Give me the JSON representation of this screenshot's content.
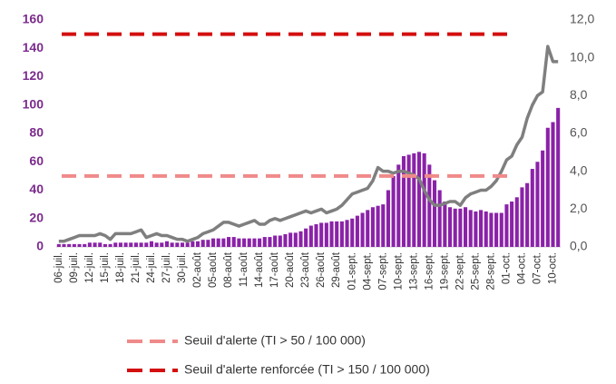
{
  "chart_data": {
    "type": "bar-line",
    "categories": [
      "06-juil.",
      null,
      null,
      "09-juil.",
      null,
      null,
      "12-juil.",
      null,
      null,
      "15-juil.",
      null,
      null,
      "18-juil.",
      null,
      null,
      "21-juil.",
      null,
      null,
      "24-juil.",
      null,
      null,
      "27-juil.",
      null,
      null,
      "30-juil.",
      null,
      null,
      "02-août",
      null,
      null,
      "05-août",
      null,
      null,
      "08-août",
      null,
      null,
      "11-août",
      null,
      null,
      "14-août",
      null,
      null,
      "17-août",
      null,
      null,
      "20-août",
      null,
      null,
      "23-août",
      null,
      null,
      "26-août",
      null,
      null,
      "29-août",
      null,
      null,
      "01-sept.",
      null,
      null,
      "04-sept.",
      null,
      null,
      "07-sept.",
      null,
      null,
      "10-sept.",
      null,
      null,
      "13-sept.",
      null,
      null,
      "16-sept.",
      null,
      null,
      "19-sept.",
      null,
      null,
      "22-sept.",
      null,
      null,
      "25-sept.",
      null,
      null,
      "28-sept.",
      null,
      null,
      "01-oct.",
      null,
      null,
      "04-oct.",
      null,
      null,
      "07-oct.",
      null,
      null,
      "10-oct.",
      null
    ],
    "series": [
      {
        "type": "bar",
        "color": "#8a22a8",
        "values": [
          2,
          2,
          2,
          2,
          2,
          2,
          3,
          3,
          3,
          2,
          2,
          3,
          3,
          3,
          3,
          3,
          3,
          3,
          4,
          3,
          3,
          4,
          3,
          3,
          3,
          3,
          4,
          4,
          5,
          5,
          6,
          6,
          6,
          7,
          7,
          6,
          6,
          6,
          6,
          6,
          7,
          7,
          8,
          8,
          9,
          10,
          10,
          11,
          13,
          15,
          16,
          17,
          17,
          18,
          18,
          18,
          19,
          20,
          22,
          24,
          26,
          28,
          29,
          30,
          40,
          50,
          58,
          64,
          65,
          66,
          67,
          66,
          58,
          47,
          40,
          32,
          28,
          27,
          27,
          28,
          26,
          25,
          26,
          25,
          24,
          24,
          24,
          30,
          32,
          35,
          42,
          45,
          55,
          60,
          68,
          84,
          88,
          98
        ]
      },
      {
        "type": "line",
        "axis": "y2",
        "color": "#7f7f7f",
        "values": [
          0.3,
          0.3,
          0.4,
          0.5,
          0.6,
          0.6,
          0.6,
          0.6,
          0.7,
          0.6,
          0.4,
          0.7,
          0.7,
          0.7,
          0.7,
          0.8,
          0.9,
          0.5,
          0.6,
          0.7,
          0.6,
          0.6,
          0.5,
          0.4,
          0.4,
          0.3,
          0.4,
          0.5,
          0.7,
          0.8,
          0.9,
          1.1,
          1.3,
          1.3,
          1.2,
          1.1,
          1.2,
          1.3,
          1.4,
          1.2,
          1.2,
          1.4,
          1.5,
          1.4,
          1.5,
          1.6,
          1.7,
          1.8,
          1.9,
          1.8,
          1.9,
          2.0,
          1.8,
          1.9,
          2.0,
          2.2,
          2.5,
          2.8,
          2.9,
          3.0,
          3.1,
          3.5,
          4.2,
          4.0,
          4.0,
          3.9,
          4.0,
          4.0,
          3.9,
          3.8,
          3.6,
          3.0,
          2.5,
          2.2,
          2.2,
          2.3,
          2.4,
          2.4,
          2.2,
          2.6,
          2.8,
          2.9,
          3.0,
          3.0,
          3.2,
          3.5,
          4.0,
          4.6,
          4.8,
          5.4,
          5.8,
          6.8,
          7.5,
          8.0,
          8.2,
          10.6,
          9.8,
          9.8
        ]
      }
    ],
    "thresholds": [
      {
        "name": "Seuil d'alerte (TI > 50 / 100 000)",
        "value": 50,
        "color": "#f08a8a"
      },
      {
        "name": "Seuil d'alerte renforcée (TI > 150 / 100 000)",
        "value": 150,
        "color": "#d40f0f"
      }
    ],
    "ylim": [
      0,
      160
    ],
    "yticks": [
      0,
      20,
      40,
      60,
      80,
      100,
      120,
      140,
      160
    ],
    "y2lim": [
      0,
      12
    ],
    "y2ticks": [
      {
        "value": 0,
        "label": "0,0"
      },
      {
        "value": 2,
        "label": "2,0"
      },
      {
        "value": 4,
        "label": "4,0"
      },
      {
        "value": 6,
        "label": "6,0"
      },
      {
        "value": 8,
        "label": "8,0"
      },
      {
        "value": 10,
        "label": "10,0"
      },
      {
        "value": 12,
        "label": "12,0"
      }
    ]
  }
}
